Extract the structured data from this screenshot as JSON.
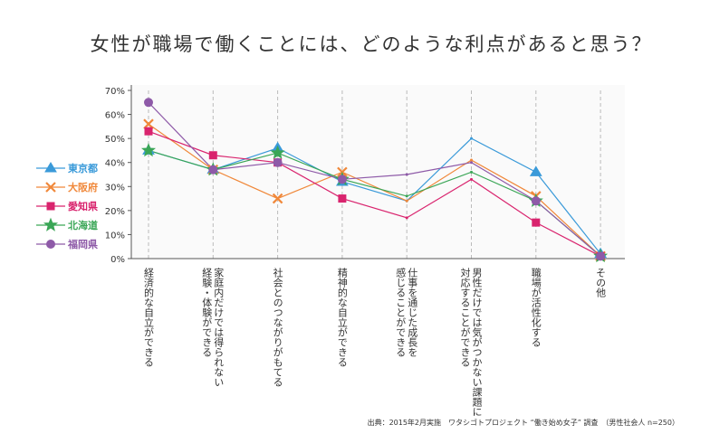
{
  "chart_data": {
    "type": "line",
    "title": "女性が職場で働くことには、どのような利点があると思う？",
    "categories": [
      [
        "経済的な自立ができる"
      ],
      [
        "家庭内だけでは得られない",
        "経験・体験ができる"
      ],
      [
        "社会とのつながりがもてる"
      ],
      [
        "精神的な自立ができる"
      ],
      [
        "仕事を通じた成長を",
        "感じることができる"
      ],
      [
        "男性だけでは気がつかない課題に",
        "対応することができる"
      ],
      [
        "職場が活性化する"
      ],
      [
        "その他"
      ]
    ],
    "series": [
      {
        "name": "東京都",
        "color": "#3a9ad9",
        "marker": "triangle",
        "values": [
          45,
          37,
          46,
          32,
          24,
          50,
          36,
          2
        ]
      },
      {
        "name": "大阪府",
        "color": "#f0883a",
        "marker": "cross",
        "values": [
          56,
          37,
          25,
          36,
          24,
          41,
          26,
          1
        ]
      },
      {
        "name": "愛知県",
        "color": "#d9246e",
        "marker": "square",
        "values": [
          53,
          43,
          40,
          25,
          17,
          33,
          15,
          1
        ]
      },
      {
        "name": "北海道",
        "color": "#3aa656",
        "marker": "star",
        "values": [
          45,
          37,
          44,
          33,
          26,
          36,
          24,
          1
        ]
      },
      {
        "name": "福岡県",
        "color": "#8e5aa8",
        "marker": "circle",
        "values": [
          65,
          37,
          40,
          33,
          35,
          40,
          24,
          1
        ]
      }
    ],
    "ylim": [
      0,
      70
    ],
    "yticks": [
      {
        "value": 0,
        "label": "0%"
      },
      {
        "value": 10,
        "label": "10%"
      },
      {
        "value": 20,
        "label": "20%"
      },
      {
        "value": 30,
        "label": "30%"
      },
      {
        "value": 40,
        "label": "40%"
      },
      {
        "value": 50,
        "label": "50%"
      },
      {
        "value": 60,
        "label": "60%"
      },
      {
        "value": 70,
        "label": "70%"
      }
    ],
    "source": "出典：2015年2月実施　ワタシゴトプロジェクト “働き始め女子” 調査　（男性社会人 n=250）"
  }
}
